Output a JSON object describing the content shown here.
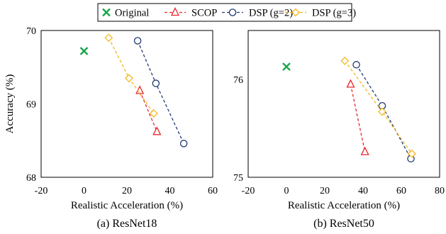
{
  "legend": {
    "position": "top-center",
    "entries": [
      {
        "label": "Original",
        "marker": "x",
        "color": "#1aa54a",
        "line": false
      },
      {
        "label": "SCOP",
        "marker": "triangle",
        "color": "#e8262a",
        "line": true
      },
      {
        "label": "DSP (g=2)",
        "marker": "circle",
        "color": "#1f3a75",
        "line": true
      },
      {
        "label": "DSP (g=3)",
        "marker": "diamond",
        "color": "#f2b81c",
        "line": true
      }
    ]
  },
  "chart_data": [
    {
      "type": "scatter",
      "caption": "(a) ResNet18",
      "xlabel": "Realistic Acceleration (%)",
      "ylabel": "Accuracy (%)",
      "xlim": [
        -20,
        60
      ],
      "ylim": [
        68,
        70
      ],
      "xticks": [
        "-20",
        "0",
        "20",
        "40",
        "60"
      ],
      "yticks": [
        "68",
        "69",
        "70"
      ],
      "grid": false,
      "series": [
        {
          "name": "Original",
          "points": [
            [
              0,
              69.72
            ]
          ]
        },
        {
          "name": "SCOP",
          "points": [
            [
              26,
              69.18
            ],
            [
              34,
              68.62
            ]
          ]
        },
        {
          "name": "DSP (g=2)",
          "points": [
            [
              25,
              69.86
            ],
            [
              33.5,
              69.28
            ],
            [
              46.5,
              68.46
            ]
          ]
        },
        {
          "name": "DSP (g=3)",
          "points": [
            [
              11.5,
              69.9
            ],
            [
              21,
              69.35
            ],
            [
              32.5,
              68.87
            ]
          ]
        }
      ]
    },
    {
      "type": "scatter",
      "caption": "(b) ResNet50",
      "xlabel": "Realistic Acceleration (%)",
      "ylabel": "",
      "xlim": [
        -20,
        80
      ],
      "ylim": [
        75,
        76.5
      ],
      "xticks": [
        "-20",
        "0",
        "20",
        "40",
        "60",
        "80"
      ],
      "yticks": [
        "75",
        "76"
      ],
      "grid": false,
      "series": [
        {
          "name": "Original",
          "points": [
            [
              0,
              76.13
            ]
          ]
        },
        {
          "name": "SCOP",
          "points": [
            [
              33.5,
              75.95
            ],
            [
              41,
              75.26
            ]
          ]
        },
        {
          "name": "DSP (g=2)",
          "points": [
            [
              36.5,
              76.15
            ],
            [
              50,
              75.73
            ],
            [
              65,
              75.19
            ]
          ]
        },
        {
          "name": "DSP (g=3)",
          "points": [
            [
              30.5,
              76.19
            ],
            [
              50,
              75.67
            ],
            [
              65.5,
              75.24
            ]
          ]
        }
      ]
    }
  ]
}
